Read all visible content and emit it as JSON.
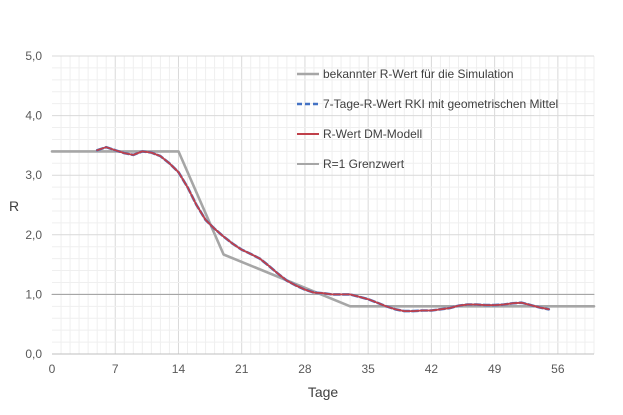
{
  "chart_data": {
    "type": "line",
    "title": "",
    "xlabel": "Tage",
    "ylabel": "R",
    "xlim": [
      0,
      60
    ],
    "ylim": [
      0,
      5
    ],
    "xticks": [
      0,
      7,
      14,
      21,
      28,
      35,
      42,
      49,
      56
    ],
    "xtick_labels": [
      "0",
      "7",
      "14",
      "21",
      "28",
      "35",
      "42",
      "49",
      "56"
    ],
    "yticks": [
      0,
      1,
      2,
      3,
      4,
      5
    ],
    "ytick_labels": [
      "0,0",
      "1,0",
      "2,0",
      "3,0",
      "4,0",
      "5,0"
    ],
    "grid": true,
    "legend_position": "top-right (inside plot)",
    "series": [
      {
        "name": "bekannter R-Wert für die Simulation",
        "color": "#a6a6a6",
        "style": "solid-thick",
        "x": [
          0,
          14,
          19,
          33,
          60
        ],
        "y": [
          3.4,
          3.4,
          1.67,
          0.8,
          0.8
        ]
      },
      {
        "name": "7-Tage-R-Wert RKI mit geometrischen Mittel",
        "color": "#4472c4",
        "style": "dashed",
        "x": [
          5,
          6,
          7,
          8,
          9,
          10,
          11,
          12,
          13,
          14,
          15,
          16,
          17,
          18,
          19,
          20,
          21,
          22,
          23,
          24,
          25,
          26,
          27,
          28,
          29,
          30,
          31,
          32,
          33,
          34,
          35,
          36,
          37,
          38,
          39,
          40,
          41,
          42,
          43,
          44,
          45,
          46,
          47,
          48,
          49,
          50,
          51,
          52,
          53,
          54,
          55
        ],
        "y": [
          3.42,
          3.47,
          3.42,
          3.37,
          3.34,
          3.4,
          3.38,
          3.32,
          3.2,
          3.05,
          2.8,
          2.5,
          2.25,
          2.1,
          1.97,
          1.85,
          1.75,
          1.68,
          1.6,
          1.48,
          1.35,
          1.23,
          1.15,
          1.08,
          1.03,
          1.02,
          1.0,
          1.0,
          1.0,
          0.96,
          0.92,
          0.86,
          0.8,
          0.75,
          0.72,
          0.72,
          0.73,
          0.73,
          0.75,
          0.77,
          0.81,
          0.83,
          0.83,
          0.82,
          0.82,
          0.83,
          0.85,
          0.86,
          0.82,
          0.78,
          0.75
        ]
      },
      {
        "name": "R-Wert DM-Modell",
        "color": "#c0404a",
        "style": "solid",
        "x": [
          5,
          6,
          7,
          8,
          9,
          10,
          11,
          12,
          13,
          14,
          15,
          16,
          17,
          18,
          19,
          20,
          21,
          22,
          23,
          24,
          25,
          26,
          27,
          28,
          29,
          30,
          31,
          32,
          33,
          34,
          35,
          36,
          37,
          38,
          39,
          40,
          41,
          42,
          43,
          44,
          45,
          46,
          47,
          48,
          49,
          50,
          51,
          52,
          53,
          54,
          55
        ],
        "y": [
          3.42,
          3.47,
          3.42,
          3.37,
          3.34,
          3.4,
          3.38,
          3.32,
          3.2,
          3.05,
          2.8,
          2.5,
          2.25,
          2.1,
          1.97,
          1.85,
          1.75,
          1.68,
          1.6,
          1.48,
          1.35,
          1.23,
          1.15,
          1.08,
          1.03,
          1.02,
          1.0,
          1.0,
          1.0,
          0.96,
          0.92,
          0.86,
          0.8,
          0.75,
          0.72,
          0.72,
          0.73,
          0.73,
          0.75,
          0.77,
          0.81,
          0.83,
          0.83,
          0.82,
          0.82,
          0.83,
          0.85,
          0.86,
          0.82,
          0.78,
          0.75
        ]
      },
      {
        "name": "R=1 Grenzwert",
        "color": "#a6a6a6",
        "style": "solid-thin",
        "x": [
          0,
          60
        ],
        "y": [
          1.0,
          1.0
        ]
      }
    ]
  }
}
